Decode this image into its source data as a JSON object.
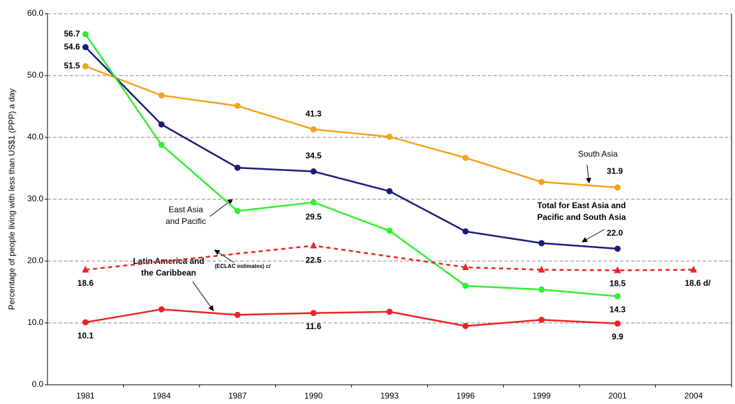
{
  "chart_data": {
    "type": "line",
    "y_label": "Percentage of people living with less than US$1 (PPP) a day",
    "categories": [
      "1981",
      "1984",
      "1987",
      "1990",
      "1993",
      "1996",
      "1999",
      "2001",
      "2004"
    ],
    "ylim": [
      0,
      60
    ],
    "yticks": [
      {
        "value": 0,
        "label": "0.0"
      },
      {
        "value": 10,
        "label": "10.0"
      },
      {
        "value": 20,
        "label": "20.0"
      },
      {
        "value": 30,
        "label": "30.0"
      },
      {
        "value": 40,
        "label": "40.0"
      },
      {
        "value": 50,
        "label": "50.0"
      },
      {
        "value": 60,
        "label": "60.0"
      }
    ],
    "grid": true,
    "series": [
      {
        "color": "#f7a11a",
        "marker": "circle",
        "values": [
          51.5,
          46.8,
          45.1,
          41.3,
          40.1,
          36.7,
          32.8,
          31.9,
          null
        ],
        "value_labels": [
          "51.5",
          null,
          null,
          "41.3",
          null,
          null,
          null,
          "31.9",
          null
        ]
      },
      {
        "color": "#1c1c7c",
        "marker": "circle",
        "values": [
          54.6,
          42.1,
          35.1,
          34.5,
          31.3,
          24.8,
          22.9,
          22.0,
          null
        ],
        "value_labels": [
          "54.6",
          null,
          null,
          "34.5",
          null,
          null,
          null,
          "22.0",
          null
        ]
      },
      {
        "color": "#33ee33",
        "marker": "circle",
        "values": [
          56.7,
          38.8,
          28.1,
          29.5,
          24.9,
          16.0,
          15.4,
          14.3,
          null
        ],
        "value_labels": [
          "56.7",
          null,
          null,
          "29.5",
          null,
          null,
          null,
          "14.3",
          null
        ]
      },
      {
        "color": "#ee2222",
        "marker": "circle",
        "values": [
          10.1,
          12.2,
          11.3,
          11.6,
          11.8,
          9.5,
          10.5,
          9.9,
          null
        ],
        "value_labels": [
          "10.1",
          null,
          null,
          "11.6",
          null,
          null,
          null,
          "9.9",
          null
        ]
      },
      {
        "color": "#ee2222",
        "marker": "triangle",
        "dashed": true,
        "x": [
          "1981",
          "1990",
          "1996",
          "1999",
          "2001",
          "2004"
        ],
        "values": [
          18.6,
          22.5,
          19.0,
          18.6,
          18.5,
          18.6
        ],
        "value_labels": [
          "18.6",
          "22.5",
          null,
          null,
          "18.5",
          "18.6 d/"
        ]
      }
    ],
    "annotations": [
      {
        "lines": [
          "South Asia"
        ]
      },
      {
        "lines": [
          "East Asia",
          "and Pacific"
        ]
      },
      {
        "lines": [
          "Total for East Asia and",
          "Pacific and South Asia"
        ]
      },
      {
        "lines": [
          "Latin America and",
          "the Caribbean"
        ]
      },
      {
        "lines": [
          "(ECLAC estimates) c/"
        ]
      }
    ]
  }
}
